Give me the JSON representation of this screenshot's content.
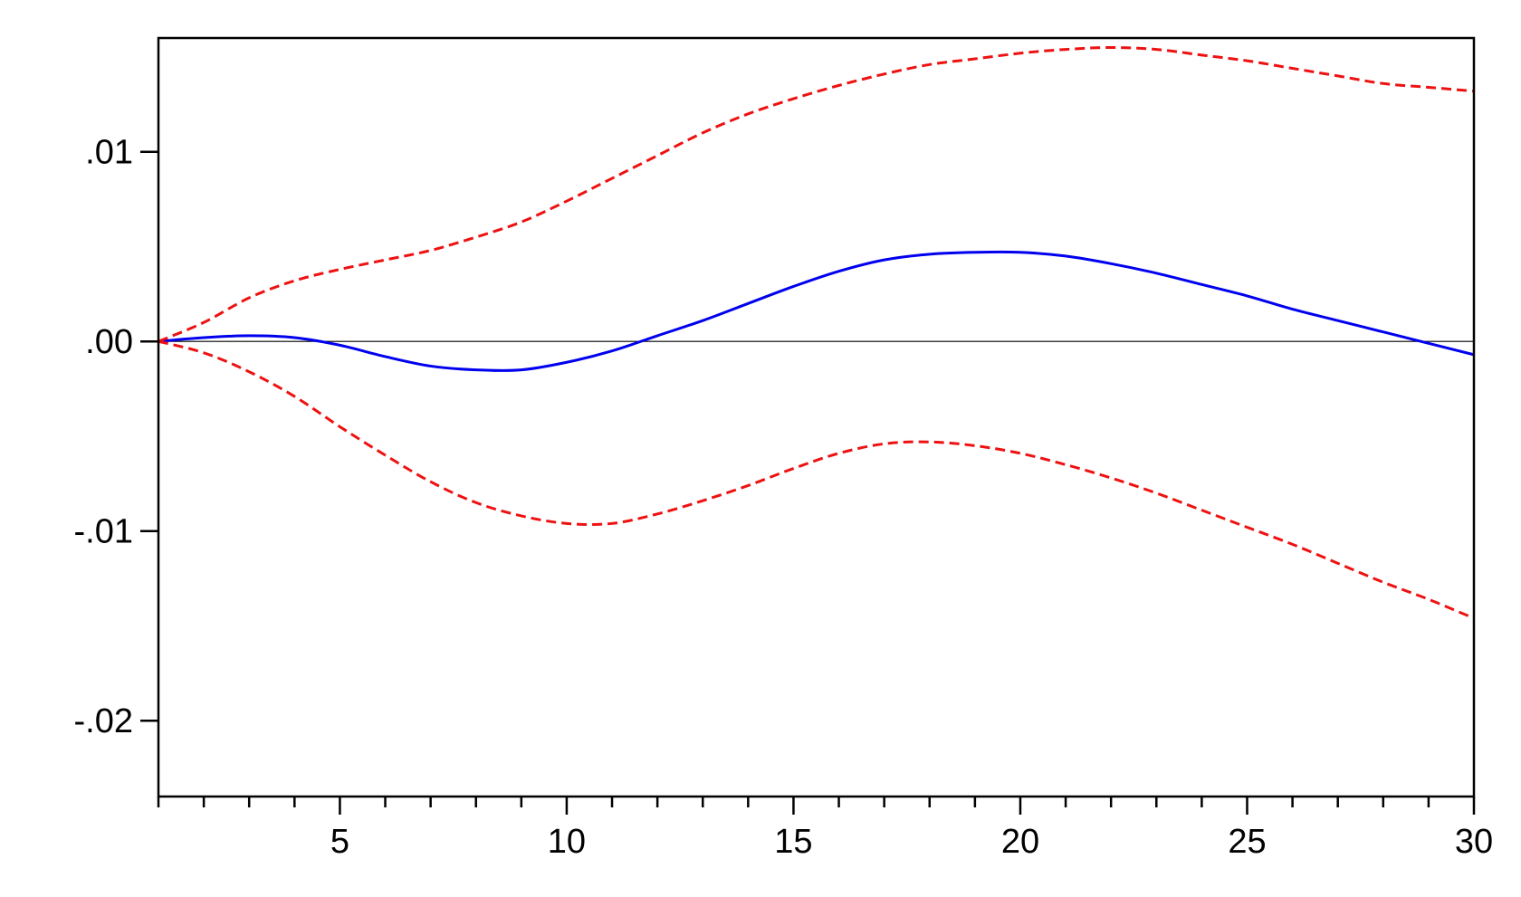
{
  "chart_data": {
    "type": "line",
    "title": "",
    "xlabel": "",
    "ylabel": "",
    "xlim": [
      1,
      30
    ],
    "ylim": [
      -0.024,
      0.016
    ],
    "x_ticks": [
      5,
      10,
      15,
      20,
      25,
      30
    ],
    "x_tick_labels": [
      "5",
      "10",
      "15",
      "20",
      "25",
      "30"
    ],
    "x_minor_step": 1,
    "y_ticks": [
      0.01,
      0.0,
      -0.01,
      -0.02
    ],
    "y_tick_labels": [
      ".01",
      ".00",
      "-.01",
      "-.02"
    ],
    "zero_line": true,
    "grid": false,
    "legend": "none",
    "x": [
      1,
      2,
      3,
      4,
      5,
      6,
      7,
      8,
      9,
      10,
      11,
      12,
      13,
      14,
      15,
      16,
      17,
      18,
      19,
      20,
      21,
      22,
      23,
      24,
      25,
      26,
      27,
      28,
      29,
      30
    ],
    "series": [
      {
        "role": "response",
        "color": "#0000ee",
        "dash": "solid",
        "values": [
          0.0,
          0.0002,
          0.0003,
          0.0002,
          -0.0002,
          -0.0008,
          -0.0013,
          -0.0015,
          -0.0015,
          -0.0011,
          -0.0005,
          0.0003,
          0.0011,
          0.002,
          0.0029,
          0.0037,
          0.0043,
          0.0046,
          0.0047,
          0.0047,
          0.0045,
          0.0041,
          0.0036,
          0.003,
          0.0024,
          0.0017,
          0.0011,
          0.0005,
          -0.0001,
          -0.0007
        ]
      },
      {
        "role": "upper-band",
        "color": "#ee1111",
        "dash": "dashed",
        "values": [
          0.0,
          0.001,
          0.0023,
          0.0032,
          0.0038,
          0.0043,
          0.0048,
          0.0055,
          0.0063,
          0.0074,
          0.0086,
          0.0098,
          0.011,
          0.012,
          0.0128,
          0.0135,
          0.0141,
          0.0146,
          0.0149,
          0.0152,
          0.0154,
          0.0155,
          0.0154,
          0.0151,
          0.0148,
          0.0144,
          0.014,
          0.0136,
          0.0134,
          0.0132
        ]
      },
      {
        "role": "lower-band",
        "color": "#ee1111",
        "dash": "dashed",
        "values": [
          0.0,
          -0.0006,
          -0.0016,
          -0.0029,
          -0.0045,
          -0.006,
          -0.0074,
          -0.0085,
          -0.0092,
          -0.0096,
          -0.0096,
          -0.0091,
          -0.0084,
          -0.0076,
          -0.0067,
          -0.0059,
          -0.0054,
          -0.0053,
          -0.0055,
          -0.0059,
          -0.0065,
          -0.0072,
          -0.008,
          -0.0089,
          -0.0098,
          -0.0107,
          -0.0117,
          -0.0127,
          -0.0136,
          -0.0146
        ]
      }
    ],
    "colors": {
      "frame": "#000000",
      "zero_line": "#000000",
      "background": "#ffffff"
    }
  }
}
